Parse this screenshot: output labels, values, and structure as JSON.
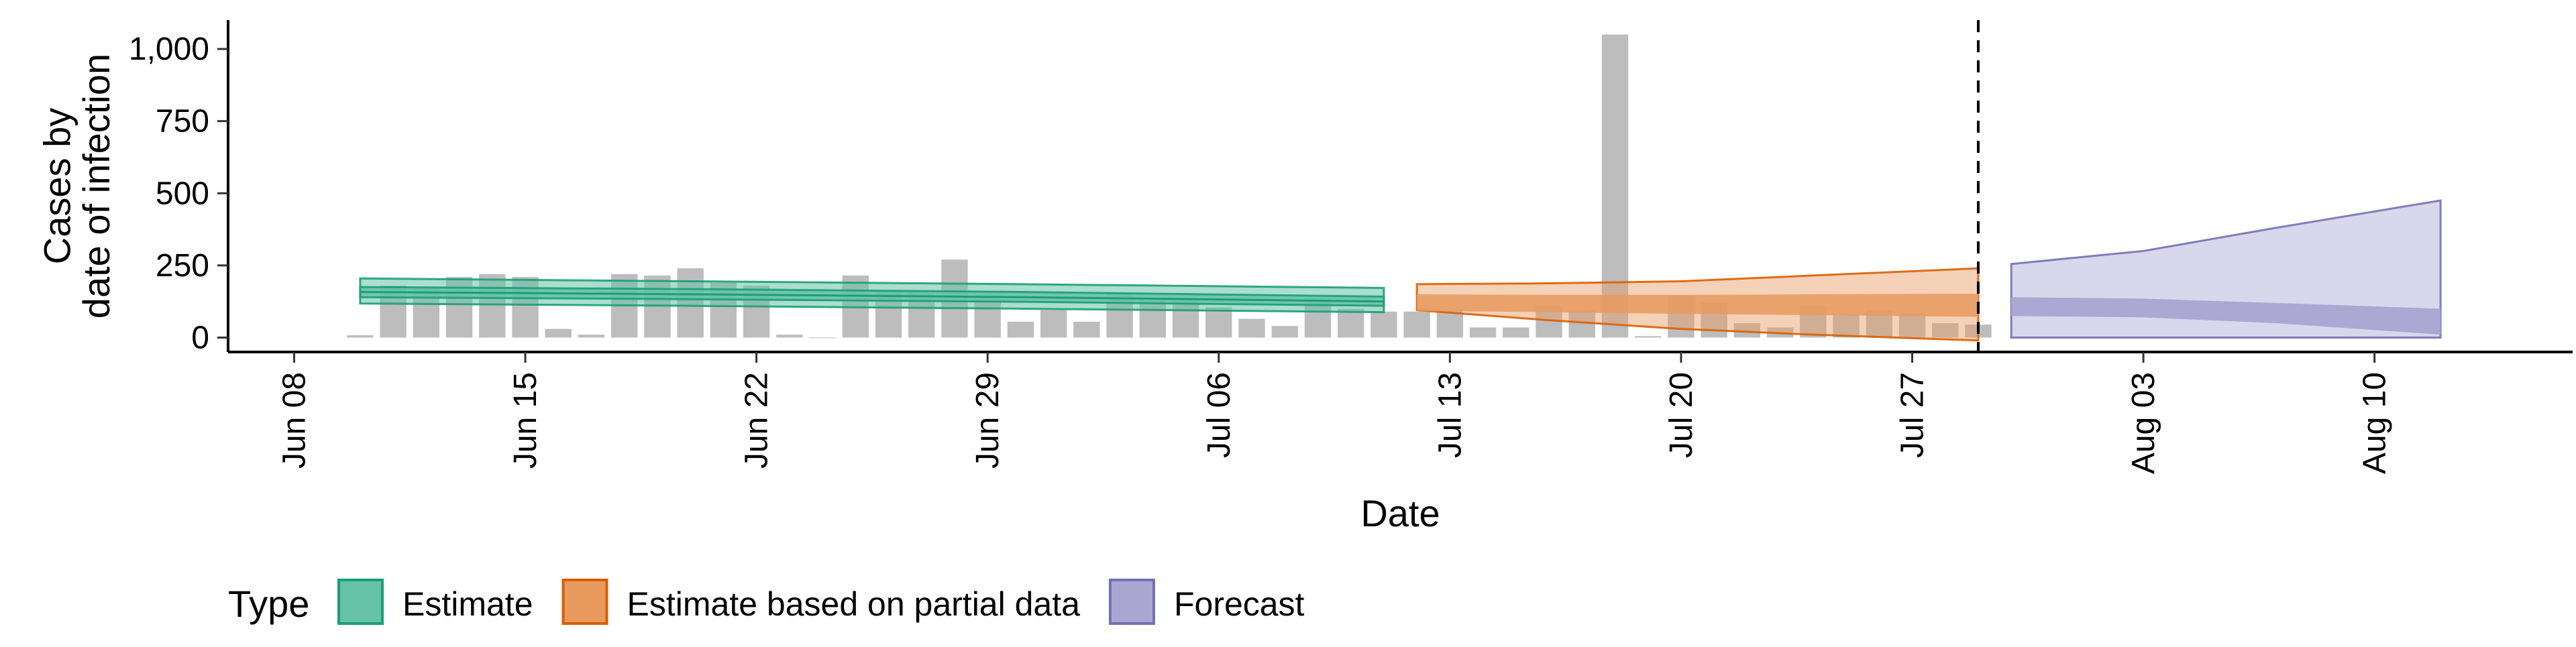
{
  "chart_data": {
    "type": "bar+area",
    "xlabel": "Date",
    "ylabel": [
      "Cases by",
      "date of infection"
    ],
    "ylim": [
      -50,
      1100
    ],
    "xlim": [
      "2020-06-06",
      "2020-08-16"
    ],
    "y_ticks": [
      0,
      250,
      500,
      750,
      1000
    ],
    "y_tick_labels": [
      "0",
      "250",
      "500",
      "750",
      "1,000"
    ],
    "x_ticks": [
      "2020-06-08",
      "2020-06-15",
      "2020-06-22",
      "2020-06-29",
      "2020-07-06",
      "2020-07-13",
      "2020-07-20",
      "2020-07-27",
      "2020-08-03",
      "2020-08-10"
    ],
    "x_tick_labels": [
      "Jun 08",
      "Jun 15",
      "Jun 22",
      "Jun 29",
      "Jul 06",
      "Jul 13",
      "Jul 20",
      "Jul 27",
      "Aug 03",
      "Aug 10"
    ],
    "grid": false,
    "legend_position": "bottom",
    "legend_title": "Type",
    "legend": [
      {
        "label": "Estimate",
        "fill": "#66c2a5",
        "stroke": "#1b9e77"
      },
      {
        "label": "Estimate based on partial data",
        "fill": "#e89a5f",
        "stroke": "#d95f02"
      },
      {
        "label": "Forecast",
        "fill": "#a9a7d2",
        "stroke": "#7570b3"
      }
    ],
    "bar_color": "#bdbdbd",
    "reported_cases": {
      "dates": [
        "2020-06-10",
        "2020-06-11",
        "2020-06-12",
        "2020-06-13",
        "2020-06-14",
        "2020-06-15",
        "2020-06-16",
        "2020-06-17",
        "2020-06-18",
        "2020-06-19",
        "2020-06-20",
        "2020-06-21",
        "2020-06-22",
        "2020-06-23",
        "2020-06-24",
        "2020-06-25",
        "2020-06-26",
        "2020-06-27",
        "2020-06-28",
        "2020-06-29",
        "2020-06-30",
        "2020-07-01",
        "2020-07-02",
        "2020-07-03",
        "2020-07-04",
        "2020-07-05",
        "2020-07-06",
        "2020-07-07",
        "2020-07-08",
        "2020-07-09",
        "2020-07-10",
        "2020-07-11",
        "2020-07-12",
        "2020-07-13",
        "2020-07-14",
        "2020-07-15",
        "2020-07-16",
        "2020-07-17",
        "2020-07-18",
        "2020-07-19",
        "2020-07-20",
        "2020-07-21",
        "2020-07-22",
        "2020-07-23",
        "2020-07-24",
        "2020-07-25",
        "2020-07-26",
        "2020-07-27",
        "2020-07-28",
        "2020-07-29"
      ],
      "values": [
        8,
        180,
        170,
        210,
        220,
        210,
        30,
        10,
        220,
        215,
        240,
        190,
        180,
        10,
        0,
        215,
        165,
        155,
        270,
        150,
        55,
        95,
        55,
        155,
        130,
        125,
        105,
        65,
        40,
        135,
        100,
        90,
        90,
        95,
        35,
        35,
        110,
        95,
        1050,
        5,
        145,
        120,
        50,
        35,
        110,
        80,
        95,
        85,
        50,
        45
      ]
    },
    "estimate": {
      "dates": [
        "2020-06-10",
        "2020-06-20",
        "2020-06-30",
        "2020-07-11"
      ],
      "median": [
        158,
        150,
        140,
        125
      ],
      "inner_low": [
        140,
        133,
        124,
        110
      ],
      "inner_high": [
        175,
        168,
        158,
        142
      ],
      "outer_low": [
        118,
        110,
        100,
        88
      ],
      "outer_high": [
        205,
        195,
        185,
        172
      ]
    },
    "estimate_partial": {
      "dates": [
        "2020-07-12",
        "2020-07-16",
        "2020-07-20",
        "2020-07-24",
        "2020-07-29"
      ],
      "inner_low": [
        92,
        88,
        82,
        78,
        72
      ],
      "inner_high": [
        150,
        148,
        148,
        150,
        152
      ],
      "outer_low": [
        95,
        60,
        30,
        10,
        -10
      ],
      "outer_high": [
        185,
        188,
        195,
        215,
        240
      ]
    },
    "forecast": {
      "dates": [
        "2020-07-30",
        "2020-08-03",
        "2020-08-07",
        "2020-08-12"
      ],
      "inner_low": [
        75,
        70,
        50,
        10
      ],
      "inner_high": [
        140,
        135,
        120,
        100
      ],
      "outer_low": [
        0,
        0,
        0,
        0
      ],
      "outer_high": [
        255,
        300,
        380,
        475
      ]
    },
    "vline_date": "2020-07-29"
  }
}
